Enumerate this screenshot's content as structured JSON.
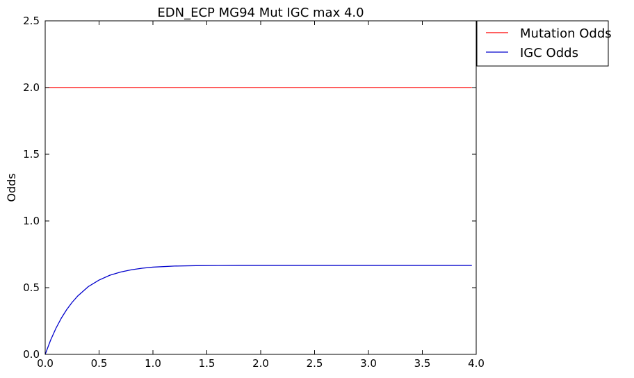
{
  "chart_data": {
    "type": "line",
    "title": "EDN_ECP MG94 Mut IGC max 4.0",
    "xlabel": "",
    "ylabel": "Odds",
    "xlim": [
      0.0,
      4.0
    ],
    "ylim": [
      0.0,
      2.5
    ],
    "x_ticks": [
      "0.0",
      "0.5",
      "1.0",
      "1.5",
      "2.0",
      "2.5",
      "3.0",
      "3.5",
      "4.0"
    ],
    "y_ticks": [
      "0.0",
      "0.5",
      "1.0",
      "1.5",
      "2.0",
      "2.5"
    ],
    "grid": false,
    "legend_position": "outside-top-right",
    "series": [
      {
        "name": "Mutation Odds",
        "color": "#ff0000",
        "x": [
          0.0,
          0.5,
          1.0,
          1.5,
          2.0,
          2.5,
          3.0,
          3.5,
          3.96
        ],
        "y": [
          2.0,
          2.0,
          2.0,
          2.0,
          2.0,
          2.0,
          2.0,
          2.0,
          2.0
        ]
      },
      {
        "name": "IGC Odds",
        "color": "#0000cc",
        "x": [
          0.0,
          0.05,
          0.1,
          0.15,
          0.2,
          0.25,
          0.3,
          0.4,
          0.5,
          0.6,
          0.7,
          0.8,
          0.9,
          1.0,
          1.2,
          1.4,
          1.6,
          1.8,
          2.0,
          2.5,
          3.0,
          3.5,
          3.96
        ],
        "y": [
          0.0,
          0.106,
          0.196,
          0.272,
          0.336,
          0.39,
          0.436,
          0.508,
          0.557,
          0.593,
          0.617,
          0.634,
          0.646,
          0.654,
          0.662,
          0.665,
          0.666,
          0.667,
          0.667,
          0.667,
          0.667,
          0.667,
          0.667
        ]
      }
    ]
  }
}
